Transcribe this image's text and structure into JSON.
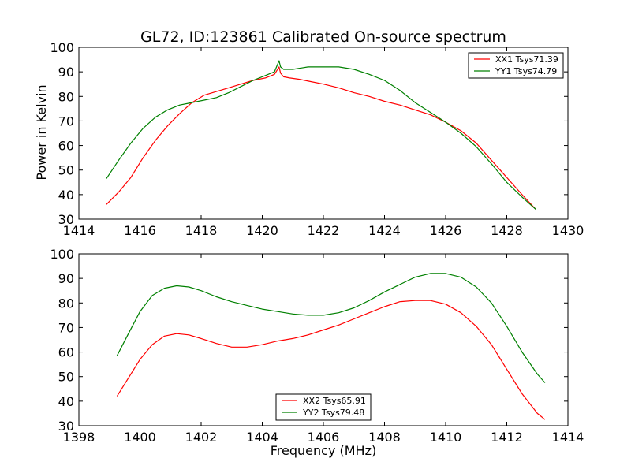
{
  "figure": {
    "title": "GL72, ID:123861 Calibrated On-source spectrum",
    "ylabel": "Power in Kelvin",
    "xlabel": "Frequency (MHz)"
  },
  "chart_data": [
    {
      "type": "line",
      "xlim": [
        1414,
        1430
      ],
      "ylim": [
        30,
        100
      ],
      "xticks": [
        "1414",
        "1416",
        "1418",
        "1420",
        "1422",
        "1424",
        "1426",
        "1428",
        "1430"
      ],
      "yticks": [
        "30",
        "40",
        "50",
        "60",
        "70",
        "80",
        "90",
        "100"
      ],
      "legend_position": "top-right",
      "series": [
        {
          "name": "XX1 Tsys71.39",
          "color": "#ff0000",
          "x": [
            1414.9,
            1415.3,
            1415.7,
            1416.1,
            1416.5,
            1416.9,
            1417.3,
            1417.7,
            1418.1,
            1418.5,
            1418.9,
            1419.3,
            1419.7,
            1420.1,
            1420.4,
            1420.55,
            1420.6,
            1420.7,
            1420.9,
            1421.2,
            1421.6,
            1422.0,
            1422.5,
            1423.0,
            1423.5,
            1424.0,
            1424.5,
            1425.0,
            1425.5,
            1426.0,
            1426.5,
            1427.0,
            1427.5,
            1428.0,
            1428.5,
            1428.95
          ],
          "y": [
            36,
            41,
            47,
            55,
            62,
            68,
            73,
            77.5,
            80.5,
            82,
            83.5,
            85,
            86.5,
            87.5,
            89,
            92,
            89.5,
            88,
            87.5,
            87,
            86,
            85,
            83.5,
            81.5,
            80,
            78,
            76.5,
            74.5,
            72.5,
            69.5,
            66,
            61,
            54,
            47,
            40,
            34
          ]
        },
        {
          "name": "YY1 Tsys74.79",
          "color": "#008000",
          "x": [
            1414.9,
            1415.3,
            1415.7,
            1416.1,
            1416.5,
            1416.9,
            1417.3,
            1417.7,
            1418.1,
            1418.5,
            1418.9,
            1419.3,
            1419.7,
            1420.1,
            1420.4,
            1420.55,
            1420.6,
            1420.7,
            1421.0,
            1421.5,
            1422.0,
            1422.5,
            1423.0,
            1423.5,
            1424.0,
            1424.5,
            1425.0,
            1425.5,
            1426.0,
            1426.5,
            1427.0,
            1427.5,
            1428.0,
            1428.5,
            1428.95
          ],
          "y": [
            46.5,
            54,
            61,
            67,
            71.5,
            74.5,
            76.5,
            77.5,
            78.5,
            79.5,
            81.5,
            84,
            86.5,
            88.5,
            90,
            94.5,
            92,
            91,
            91,
            92,
            92,
            92,
            91,
            89,
            86.5,
            82.5,
            77.5,
            73.5,
            69.5,
            65,
            59.5,
            52.5,
            45,
            39,
            34
          ]
        }
      ]
    },
    {
      "type": "line",
      "xlim": [
        1398,
        1414
      ],
      "ylim": [
        30,
        100
      ],
      "xticks": [
        "1398",
        "1400",
        "1402",
        "1404",
        "1406",
        "1408",
        "1410",
        "1412",
        "1414"
      ],
      "yticks": [
        "30",
        "40",
        "50",
        "60",
        "70",
        "80",
        "90",
        "100"
      ],
      "legend_position": "bottom-center",
      "series": [
        {
          "name": "XX2 Tsys65.91",
          "color": "#ff0000",
          "x": [
            1399.25,
            1399.6,
            1400.0,
            1400.4,
            1400.8,
            1401.2,
            1401.6,
            1402.0,
            1402.5,
            1403.0,
            1403.5,
            1404.0,
            1404.5,
            1405.0,
            1405.5,
            1406.0,
            1406.5,
            1407.0,
            1407.5,
            1408.0,
            1408.5,
            1409.0,
            1409.5,
            1410.0,
            1410.5,
            1411.0,
            1411.5,
            1412.0,
            1412.5,
            1413.0,
            1413.25
          ],
          "y": [
            42,
            49,
            57,
            63,
            66.5,
            67.5,
            67,
            65.5,
            63.5,
            62,
            62,
            63,
            64.5,
            65.5,
            67,
            69,
            71,
            73.5,
            76,
            78.5,
            80.5,
            81,
            81,
            79.5,
            76,
            70.5,
            63,
            53,
            43,
            35,
            32.5
          ]
        },
        {
          "name": "YY2 Tsys79.48",
          "color": "#008000",
          "x": [
            1399.25,
            1399.6,
            1400.0,
            1400.4,
            1400.8,
            1401.2,
            1401.6,
            1402.0,
            1402.5,
            1403.0,
            1403.5,
            1404.0,
            1404.5,
            1405.0,
            1405.5,
            1406.0,
            1406.5,
            1407.0,
            1407.5,
            1408.0,
            1408.5,
            1409.0,
            1409.5,
            1410.0,
            1410.5,
            1411.0,
            1411.5,
            1412.0,
            1412.5,
            1413.0,
            1413.25
          ],
          "y": [
            58.5,
            67,
            76.5,
            83,
            86,
            87,
            86.5,
            85,
            82.5,
            80.5,
            79,
            77.5,
            76.5,
            75.5,
            75,
            75,
            76,
            78,
            81,
            84.5,
            87.5,
            90.5,
            92,
            92,
            90.5,
            86.5,
            80,
            70.5,
            60,
            51,
            47.5
          ]
        }
      ]
    }
  ]
}
